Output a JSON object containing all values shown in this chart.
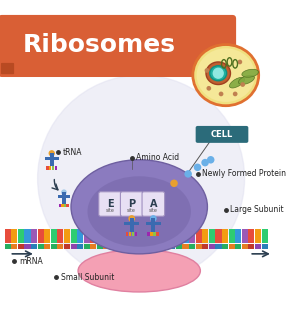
{
  "title": "Ribosomes",
  "title_bg": "#d95f35",
  "title_color": "#ffffff",
  "bg_color": "#ffffff",
  "cell_label": "CELL",
  "cell_label_bg": "#2b6b7a",
  "cell_label_color": "#ffffff",
  "labels": {
    "tRNA": "tRNA",
    "amino_acid": "Amino Acid",
    "newly_formed": "Newly Formed Protein",
    "large_subunit": "Large Subunit",
    "mRNA": "mRNA",
    "small_subunit": "Small Subunit",
    "E": "E",
    "P": "P",
    "A": "A"
  },
  "colors": {
    "large_subunit_body": "#8b7bbf",
    "large_subunit_dark": "#6e5fa0",
    "small_subunit_body": "#f4a0b4",
    "mRNA_stripe1": "#e74c3c",
    "mRNA_stripe2": "#f39c12",
    "mRNA_stripe3": "#2ecc71",
    "mRNA_stripe4": "#3498db",
    "tRNA_head": "#e8a030",
    "tRNA_body": "#3a6ab0",
    "tRNA_codon1": "#e74c3c",
    "tRNA_codon2": "#f39c12",
    "tRNA_codon3": "#8bc34a",
    "tRNA_codon4": "#9c27b0",
    "site_bg": "#c8bce0",
    "arrow_color": "#2c3e50",
    "newly_formed_chain": [
      "#3498db",
      "#3498db",
      "#3498db",
      "#3498db",
      "#e8a030"
    ],
    "watermark": "#e0e0f0"
  }
}
